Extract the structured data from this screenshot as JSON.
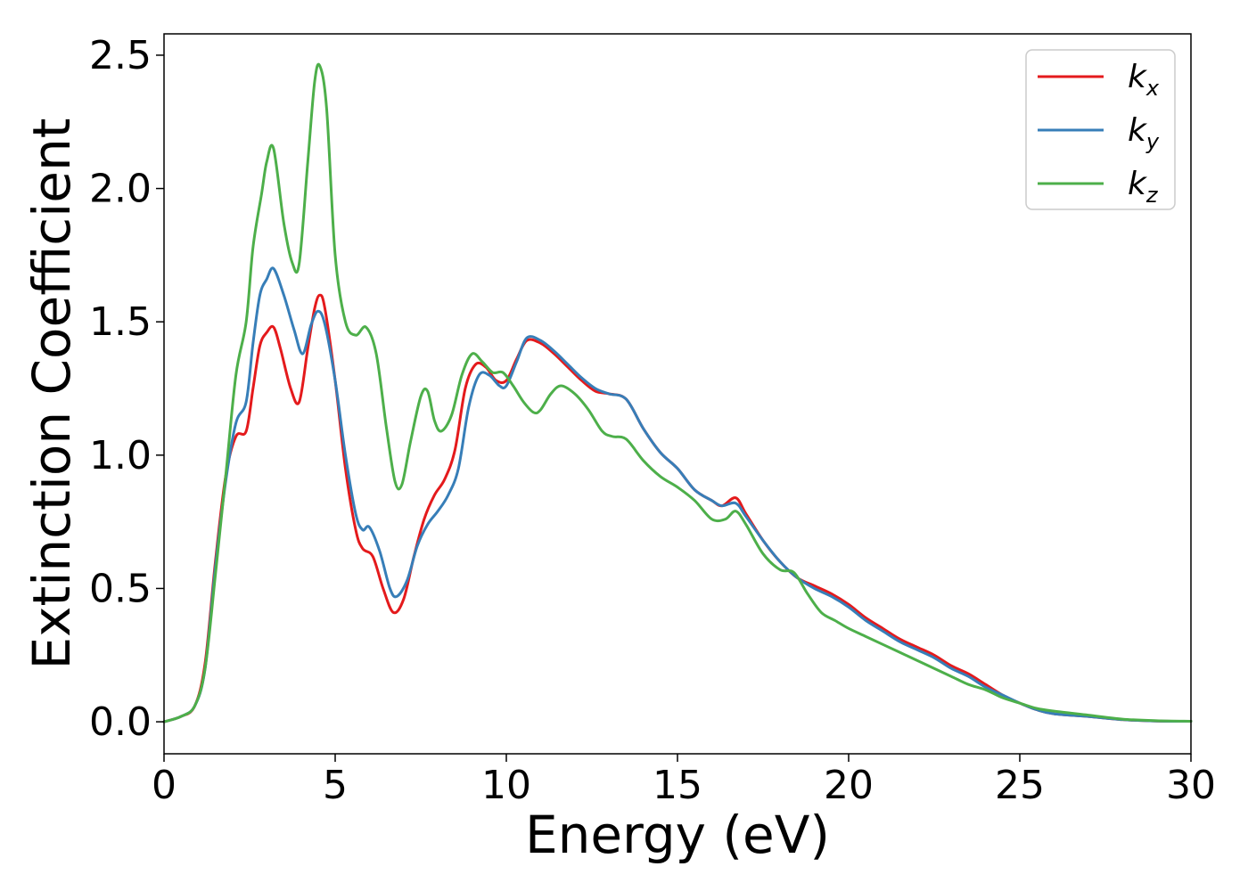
{
  "chart_data": {
    "type": "line",
    "title": "",
    "xlabel": "Energy (eV)",
    "ylabel": "Extinction Coefficient",
    "xlim": [
      0,
      30
    ],
    "ylim": [
      -0.12,
      2.58
    ],
    "xticks": [
      0,
      5,
      10,
      15,
      20,
      25,
      30
    ],
    "xtick_labels": [
      "0",
      "5",
      "10",
      "15",
      "20",
      "25",
      "30"
    ],
    "yticks": [
      0.0,
      0.5,
      1.0,
      1.5,
      2.0,
      2.5
    ],
    "ytick_labels": [
      "0.0",
      "0.5",
      "1.0",
      "1.5",
      "2.0",
      "2.5"
    ],
    "grid": false,
    "legend_position": "top-right",
    "series": [
      {
        "name": "k",
        "subscript": "x",
        "color": "#e41a1c",
        "points": [
          [
            0,
            0
          ],
          [
            0.5,
            0.02
          ],
          [
            0.9,
            0.06
          ],
          [
            1.2,
            0.22
          ],
          [
            1.5,
            0.6
          ],
          [
            1.8,
            0.92
          ],
          [
            2.1,
            1.07
          ],
          [
            2.4,
            1.09
          ],
          [
            2.6,
            1.25
          ],
          [
            2.8,
            1.41
          ],
          [
            3.0,
            1.46
          ],
          [
            3.2,
            1.48
          ],
          [
            3.4,
            1.4
          ],
          [
            3.7,
            1.25
          ],
          [
            3.95,
            1.2
          ],
          [
            4.2,
            1.4
          ],
          [
            4.4,
            1.55
          ],
          [
            4.55,
            1.6
          ],
          [
            4.7,
            1.55
          ],
          [
            5.0,
            1.28
          ],
          [
            5.3,
            0.95
          ],
          [
            5.6,
            0.72
          ],
          [
            5.8,
            0.65
          ],
          [
            6.1,
            0.62
          ],
          [
            6.4,
            0.5
          ],
          [
            6.7,
            0.41
          ],
          [
            7.0,
            0.46
          ],
          [
            7.3,
            0.62
          ],
          [
            7.6,
            0.76
          ],
          [
            7.9,
            0.85
          ],
          [
            8.2,
            0.91
          ],
          [
            8.5,
            1.02
          ],
          [
            8.8,
            1.25
          ],
          [
            9.1,
            1.34
          ],
          [
            9.4,
            1.33
          ],
          [
            9.7,
            1.28
          ],
          [
            10.0,
            1.28
          ],
          [
            10.3,
            1.36
          ],
          [
            10.6,
            1.43
          ],
          [
            11.0,
            1.42
          ],
          [
            11.4,
            1.38
          ],
          [
            11.8,
            1.33
          ],
          [
            12.2,
            1.28
          ],
          [
            12.6,
            1.24
          ],
          [
            13.0,
            1.23
          ],
          [
            13.5,
            1.21
          ],
          [
            14.0,
            1.1
          ],
          [
            14.5,
            1.01
          ],
          [
            15.0,
            0.95
          ],
          [
            15.5,
            0.87
          ],
          [
            16.0,
            0.83
          ],
          [
            16.3,
            0.81
          ],
          [
            16.7,
            0.84
          ],
          [
            17.0,
            0.78
          ],
          [
            17.5,
            0.68
          ],
          [
            18.0,
            0.6
          ],
          [
            18.5,
            0.54
          ],
          [
            19.0,
            0.51
          ],
          [
            19.5,
            0.48
          ],
          [
            20.0,
            0.44
          ],
          [
            20.5,
            0.39
          ],
          [
            21.0,
            0.35
          ],
          [
            21.5,
            0.31
          ],
          [
            22.0,
            0.28
          ],
          [
            22.5,
            0.25
          ],
          [
            23.0,
            0.21
          ],
          [
            23.5,
            0.18
          ],
          [
            24.0,
            0.14
          ],
          [
            24.5,
            0.1
          ],
          [
            25.0,
            0.07
          ],
          [
            25.5,
            0.045
          ],
          [
            26.0,
            0.03
          ],
          [
            27.0,
            0.02
          ],
          [
            28.0,
            0.008
          ],
          [
            29.0,
            0.003
          ],
          [
            30.0,
            0.002
          ]
        ]
      },
      {
        "name": "k",
        "subscript": "y",
        "color": "#377eb8",
        "points": [
          [
            0,
            0
          ],
          [
            0.5,
            0.02
          ],
          [
            0.9,
            0.06
          ],
          [
            1.2,
            0.2
          ],
          [
            1.5,
            0.58
          ],
          [
            1.8,
            0.9
          ],
          [
            2.1,
            1.12
          ],
          [
            2.4,
            1.2
          ],
          [
            2.6,
            1.42
          ],
          [
            2.8,
            1.6
          ],
          [
            3.0,
            1.66
          ],
          [
            3.2,
            1.7
          ],
          [
            3.5,
            1.6
          ],
          [
            3.8,
            1.47
          ],
          [
            4.05,
            1.38
          ],
          [
            4.3,
            1.49
          ],
          [
            4.5,
            1.54
          ],
          [
            4.7,
            1.49
          ],
          [
            5.0,
            1.28
          ],
          [
            5.3,
            1.0
          ],
          [
            5.6,
            0.78
          ],
          [
            5.8,
            0.72
          ],
          [
            6.0,
            0.73
          ],
          [
            6.3,
            0.64
          ],
          [
            6.6,
            0.5
          ],
          [
            6.8,
            0.47
          ],
          [
            7.1,
            0.53
          ],
          [
            7.4,
            0.66
          ],
          [
            7.7,
            0.74
          ],
          [
            8.0,
            0.79
          ],
          [
            8.3,
            0.85
          ],
          [
            8.6,
            0.95
          ],
          [
            8.9,
            1.18
          ],
          [
            9.2,
            1.3
          ],
          [
            9.5,
            1.3
          ],
          [
            9.8,
            1.26
          ],
          [
            10.0,
            1.26
          ],
          [
            10.3,
            1.35
          ],
          [
            10.6,
            1.44
          ],
          [
            11.0,
            1.43
          ],
          [
            11.4,
            1.39
          ],
          [
            11.8,
            1.34
          ],
          [
            12.2,
            1.29
          ],
          [
            12.6,
            1.25
          ],
          [
            13.0,
            1.23
          ],
          [
            13.5,
            1.21
          ],
          [
            14.0,
            1.1
          ],
          [
            14.5,
            1.01
          ],
          [
            15.0,
            0.95
          ],
          [
            15.5,
            0.87
          ],
          [
            16.0,
            0.83
          ],
          [
            16.3,
            0.81
          ],
          [
            16.7,
            0.82
          ],
          [
            17.0,
            0.77
          ],
          [
            17.5,
            0.68
          ],
          [
            18.0,
            0.6
          ],
          [
            18.5,
            0.54
          ],
          [
            19.0,
            0.5
          ],
          [
            19.5,
            0.47
          ],
          [
            20.0,
            0.43
          ],
          [
            20.5,
            0.38
          ],
          [
            21.0,
            0.34
          ],
          [
            21.5,
            0.3
          ],
          [
            22.0,
            0.27
          ],
          [
            22.5,
            0.24
          ],
          [
            23.0,
            0.2
          ],
          [
            23.5,
            0.17
          ],
          [
            24.0,
            0.13
          ],
          [
            24.5,
            0.1
          ],
          [
            25.0,
            0.07
          ],
          [
            25.5,
            0.045
          ],
          [
            26.0,
            0.03
          ],
          [
            27.0,
            0.02
          ],
          [
            28.0,
            0.008
          ],
          [
            29.0,
            0.003
          ],
          [
            30.0,
            0.002
          ]
        ]
      },
      {
        "name": "k",
        "subscript": "z",
        "color": "#4daf4a",
        "points": [
          [
            0,
            0
          ],
          [
            0.5,
            0.02
          ],
          [
            0.9,
            0.06
          ],
          [
            1.2,
            0.2
          ],
          [
            1.5,
            0.55
          ],
          [
            1.8,
            0.92
          ],
          [
            2.1,
            1.3
          ],
          [
            2.4,
            1.5
          ],
          [
            2.6,
            1.78
          ],
          [
            2.85,
            1.98
          ],
          [
            3.0,
            2.1
          ],
          [
            3.2,
            2.15
          ],
          [
            3.5,
            1.87
          ],
          [
            3.75,
            1.72
          ],
          [
            3.95,
            1.72
          ],
          [
            4.2,
            2.1
          ],
          [
            4.4,
            2.4
          ],
          [
            4.55,
            2.46
          ],
          [
            4.75,
            2.3
          ],
          [
            5.0,
            1.75
          ],
          [
            5.3,
            1.5
          ],
          [
            5.6,
            1.45
          ],
          [
            5.9,
            1.48
          ],
          [
            6.2,
            1.38
          ],
          [
            6.5,
            1.1
          ],
          [
            6.75,
            0.9
          ],
          [
            6.95,
            0.89
          ],
          [
            7.2,
            1.05
          ],
          [
            7.5,
            1.22
          ],
          [
            7.7,
            1.24
          ],
          [
            7.9,
            1.13
          ],
          [
            8.1,
            1.09
          ],
          [
            8.4,
            1.15
          ],
          [
            8.7,
            1.3
          ],
          [
            9.0,
            1.38
          ],
          [
            9.3,
            1.35
          ],
          [
            9.6,
            1.31
          ],
          [
            9.9,
            1.31
          ],
          [
            10.2,
            1.26
          ],
          [
            10.5,
            1.2
          ],
          [
            10.8,
            1.16
          ],
          [
            11.0,
            1.17
          ],
          [
            11.3,
            1.23
          ],
          [
            11.6,
            1.26
          ],
          [
            12.0,
            1.23
          ],
          [
            12.4,
            1.17
          ],
          [
            12.8,
            1.09
          ],
          [
            13.1,
            1.07
          ],
          [
            13.5,
            1.06
          ],
          [
            14.0,
            0.98
          ],
          [
            14.5,
            0.92
          ],
          [
            15.0,
            0.88
          ],
          [
            15.5,
            0.83
          ],
          [
            16.0,
            0.76
          ],
          [
            16.4,
            0.76
          ],
          [
            16.7,
            0.79
          ],
          [
            17.0,
            0.74
          ],
          [
            17.5,
            0.63
          ],
          [
            18.0,
            0.57
          ],
          [
            18.4,
            0.56
          ],
          [
            18.8,
            0.48
          ],
          [
            19.2,
            0.41
          ],
          [
            19.6,
            0.38
          ],
          [
            20.0,
            0.35
          ],
          [
            20.5,
            0.32
          ],
          [
            21.0,
            0.29
          ],
          [
            21.5,
            0.26
          ],
          [
            22.0,
            0.23
          ],
          [
            22.5,
            0.2
          ],
          [
            23.0,
            0.17
          ],
          [
            23.5,
            0.14
          ],
          [
            24.0,
            0.12
          ],
          [
            24.5,
            0.09
          ],
          [
            25.0,
            0.07
          ],
          [
            25.5,
            0.05
          ],
          [
            26.0,
            0.04
          ],
          [
            27.0,
            0.025
          ],
          [
            28.0,
            0.01
          ],
          [
            29.0,
            0.004
          ],
          [
            30.0,
            0.002
          ]
        ]
      }
    ]
  }
}
